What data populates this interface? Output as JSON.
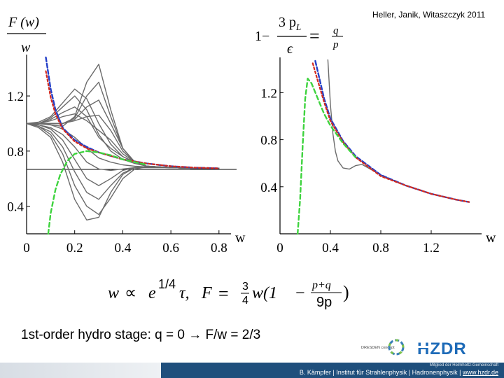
{
  "citation": "Heller, Janik, Witaszczyk 2011",
  "left_panel": {
    "ylabel_num": "F (w)",
    "ylabel_den": "w",
    "xlabel": "w",
    "xticks": [
      "0",
      "0.2",
      "0.4",
      "0.6",
      "0.8"
    ],
    "yticks": [
      "1.2",
      "0.8",
      "0.4"
    ]
  },
  "right_panel": {
    "ylabel_prefix": "1−",
    "ylabel_frac_num": "3 p",
    "ylabel_frac_sub": "L",
    "ylabel_frac_den": "ϵ",
    "ylabel_eq": "=",
    "ylabel_rhs_num": "q",
    "ylabel_rhs_den": "p",
    "xlabel": "w",
    "xticks": [
      "0",
      "0.4",
      "0.8",
      "1.2"
    ],
    "yticks": [
      "1.2",
      "0.8",
      "0.4"
    ]
  },
  "formula": {
    "w": "w",
    "prop": "∝",
    "e": "e",
    "exp": "1/4",
    "tau": "τ,",
    "F": "F",
    "eq": "=",
    "three": "3",
    "four": "4",
    "w2": "w(1",
    "minus": "−",
    "pq": "p+q",
    "ninep": "9p",
    "close": ")"
  },
  "caption": "1st-order hydro stage: q = 0 → F/w = 2/3",
  "logos": {
    "dresden": "DRESDEN concept",
    "hzdr": "HZDR"
  },
  "footer": {
    "member": "Mitglied der Helmholtz-Gemeinschaft",
    "text": "B. Kämpfer | Institut für Strahlenphysik | Hadronenphysik | ",
    "link": "www.hzdr.de"
  },
  "colors": {
    "gray": "#6b6b6b",
    "blue": "#2540c8",
    "red": "#d42a1e",
    "green": "#3ed33e",
    "footer": "#1f4f7c"
  },
  "chart_data": [
    {
      "type": "line",
      "xlabel": "w",
      "ylabel": "F(w)/w",
      "xlim": [
        0,
        0.85
      ],
      "ylim": [
        0.2,
        1.5
      ],
      "xticks": [
        0,
        0.2,
        0.4,
        0.6,
        0.8
      ],
      "yticks": [
        0.4,
        0.8,
        1.2
      ],
      "hline": 0.667,
      "series": [
        {
          "style": "blue-dashed",
          "x": [
            0.08,
            0.1,
            0.12,
            0.15,
            0.2,
            0.25,
            0.3,
            0.4,
            0.5,
            0.6,
            0.7,
            0.8
          ],
          "y": [
            1.48,
            1.25,
            1.1,
            0.97,
            0.88,
            0.83,
            0.79,
            0.74,
            0.71,
            0.69,
            0.68,
            0.675
          ]
        },
        {
          "style": "red-dashed",
          "x": [
            0.08,
            0.1,
            0.12,
            0.15,
            0.2,
            0.25,
            0.3,
            0.4,
            0.5,
            0.6,
            0.7,
            0.8
          ],
          "y": [
            1.38,
            1.19,
            1.07,
            0.96,
            0.87,
            0.82,
            0.79,
            0.74,
            0.71,
            0.69,
            0.68,
            0.675
          ]
        },
        {
          "style": "green-dashed",
          "x": [
            0.09,
            0.1,
            0.12,
            0.14,
            0.17,
            0.2,
            0.25,
            0.3,
            0.35,
            0.4,
            0.45,
            0.5
          ],
          "y": [
            0.2,
            0.35,
            0.52,
            0.63,
            0.73,
            0.78,
            0.8,
            0.79,
            0.77,
            0.74,
            0.72,
            0.7
          ]
        },
        {
          "style": "gray",
          "x": [
            0,
            0.05,
            0.1,
            0.15,
            0.2,
            0.25,
            0.3,
            0.35,
            0.4,
            0.45,
            0.5,
            0.6,
            0.7,
            0.8
          ],
          "y": [
            1.0,
            1.0,
            0.99,
            0.98,
            1.05,
            1.3,
            1.43,
            1.1,
            0.82,
            0.72,
            0.69,
            0.68,
            0.675,
            0.675
          ]
        },
        {
          "style": "gray",
          "x": [
            0,
            0.05,
            0.1,
            0.15,
            0.2,
            0.25,
            0.3,
            0.35,
            0.4,
            0.45,
            0.5,
            0.6,
            0.7,
            0.8
          ],
          "y": [
            1.0,
            1.0,
            1.0,
            1.0,
            1.04,
            1.2,
            1.3,
            1.05,
            0.82,
            0.72,
            0.69,
            0.68,
            0.675,
            0.675
          ]
        },
        {
          "style": "gray",
          "x": [
            0,
            0.05,
            0.1,
            0.15,
            0.2,
            0.25,
            0.3,
            0.35,
            0.4,
            0.45,
            0.5,
            0.6,
            0.7,
            0.8
          ],
          "y": [
            1.0,
            1.0,
            1.0,
            1.0,
            1.03,
            1.12,
            1.17,
            1.0,
            0.82,
            0.72,
            0.69,
            0.68,
            0.675,
            0.675
          ]
        },
        {
          "style": "gray",
          "x": [
            0,
            0.05,
            0.1,
            0.15,
            0.2,
            0.25,
            0.3,
            0.35,
            0.4,
            0.45,
            0.5,
            0.6,
            0.7,
            0.8
          ],
          "y": [
            1.0,
            1.0,
            1.0,
            1.0,
            1.02,
            1.05,
            1.06,
            0.95,
            0.8,
            0.72,
            0.69,
            0.68,
            0.675,
            0.675
          ]
        },
        {
          "style": "gray",
          "x": [
            0,
            0.05,
            0.1,
            0.15,
            0.2,
            0.25,
            0.3,
            0.35,
            0.4,
            0.45,
            0.5,
            0.6,
            0.7,
            0.8
          ],
          "y": [
            1.0,
            1.0,
            1.02,
            1.05,
            1.07,
            1.02,
            0.95,
            0.88,
            0.78,
            0.72,
            0.69,
            0.68,
            0.675,
            0.675
          ]
        },
        {
          "style": "gray",
          "x": [
            0,
            0.05,
            0.1,
            0.15,
            0.2,
            0.25,
            0.3,
            0.35,
            0.4,
            0.45,
            0.5,
            0.6,
            0.7,
            0.8
          ],
          "y": [
            1.0,
            1.0,
            1.03,
            1.08,
            1.12,
            1.05,
            0.9,
            0.82,
            0.76,
            0.72,
            0.69,
            0.68,
            0.675,
            0.675
          ]
        },
        {
          "style": "gray",
          "x": [
            0,
            0.05,
            0.1,
            0.15,
            0.2,
            0.25,
            0.3,
            0.35,
            0.4,
            0.45,
            0.5,
            0.6,
            0.7,
            0.8
          ],
          "y": [
            1.0,
            1.0,
            1.04,
            1.12,
            1.2,
            1.1,
            0.92,
            0.8,
            0.74,
            0.71,
            0.69,
            0.68,
            0.675,
            0.675
          ]
        },
        {
          "style": "gray",
          "x": [
            0,
            0.05,
            0.1,
            0.15,
            0.2,
            0.25,
            0.3,
            0.35,
            0.4,
            0.45,
            0.5,
            0.6,
            0.7,
            0.8
          ],
          "y": [
            1.0,
            1.0,
            0.99,
            0.96,
            0.9,
            0.82,
            0.75,
            0.72,
            0.7,
            0.69,
            0.685,
            0.68,
            0.675,
            0.675
          ]
        },
        {
          "style": "gray",
          "x": [
            0,
            0.05,
            0.1,
            0.15,
            0.2,
            0.25,
            0.3,
            0.35,
            0.4,
            0.45,
            0.5,
            0.6,
            0.7,
            0.8
          ],
          "y": [
            1.0,
            0.99,
            0.97,
            0.92,
            0.83,
            0.72,
            0.67,
            0.66,
            0.67,
            0.68,
            0.68,
            0.68,
            0.675,
            0.675
          ]
        },
        {
          "style": "gray",
          "x": [
            0,
            0.05,
            0.1,
            0.15,
            0.2,
            0.25,
            0.3,
            0.35,
            0.4,
            0.45,
            0.5,
            0.6,
            0.7,
            0.8
          ],
          "y": [
            1.0,
            0.99,
            0.96,
            0.88,
            0.74,
            0.6,
            0.55,
            0.6,
            0.66,
            0.68,
            0.685,
            0.68,
            0.675,
            0.675
          ]
        },
        {
          "style": "gray",
          "x": [
            0,
            0.05,
            0.1,
            0.15,
            0.2,
            0.25,
            0.3,
            0.35,
            0.4,
            0.45,
            0.5,
            0.6,
            0.7,
            0.8
          ],
          "y": [
            1.0,
            0.98,
            0.94,
            0.83,
            0.65,
            0.5,
            0.45,
            0.55,
            0.64,
            0.68,
            0.685,
            0.68,
            0.675,
            0.675
          ]
        },
        {
          "style": "gray",
          "x": [
            0,
            0.05,
            0.1,
            0.15,
            0.2,
            0.25,
            0.3,
            0.35,
            0.4,
            0.45,
            0.5,
            0.6,
            0.7,
            0.8
          ],
          "y": [
            1.0,
            0.98,
            0.92,
            0.78,
            0.55,
            0.4,
            0.34,
            0.46,
            0.6,
            0.67,
            0.685,
            0.68,
            0.675,
            0.675
          ]
        },
        {
          "style": "gray",
          "x": [
            0,
            0.05,
            0.1,
            0.15,
            0.2,
            0.25,
            0.3,
            0.35,
            0.4,
            0.45,
            0.5,
            0.6,
            0.7,
            0.8
          ],
          "y": [
            1.0,
            0.97,
            0.9,
            0.72,
            0.45,
            0.3,
            0.32,
            0.5,
            0.63,
            0.68,
            0.685,
            0.68,
            0.675,
            0.675
          ]
        },
        {
          "style": "gray",
          "x": [
            0,
            0.05,
            0.1,
            0.15,
            0.2,
            0.25,
            0.3,
            0.35,
            0.4,
            0.45,
            0.5,
            0.6,
            0.7,
            0.8
          ],
          "y": [
            1.0,
            1.01,
            1.05,
            1.15,
            1.25,
            1.18,
            1.0,
            0.85,
            0.76,
            0.72,
            0.69,
            0.68,
            0.675,
            0.675
          ]
        }
      ]
    },
    {
      "type": "line",
      "xlabel": "w",
      "ylabel": "1 − 3pL/ϵ = q/p",
      "xlim": [
        0,
        1.6
      ],
      "ylim": [
        0.0,
        1.5
      ],
      "xticks": [
        0,
        0.4,
        0.8,
        1.2
      ],
      "yticks": [
        0.4,
        0.8,
        1.2
      ],
      "series": [
        {
          "style": "blue-dashed",
          "x": [
            0.28,
            0.3,
            0.35,
            0.4,
            0.5,
            0.6,
            0.8,
            1.0,
            1.2,
            1.4,
            1.5
          ],
          "y": [
            1.47,
            1.38,
            1.15,
            0.98,
            0.79,
            0.66,
            0.5,
            0.41,
            0.34,
            0.29,
            0.27
          ]
        },
        {
          "style": "red-dashed",
          "x": [
            0.26,
            0.3,
            0.35,
            0.4,
            0.5,
            0.6,
            0.8,
            1.0,
            1.2,
            1.4,
            1.5
          ],
          "y": [
            1.45,
            1.3,
            1.12,
            0.96,
            0.78,
            0.65,
            0.49,
            0.41,
            0.34,
            0.29,
            0.27
          ]
        },
        {
          "style": "green-dashed",
          "x": [
            0.14,
            0.16,
            0.18,
            0.2,
            0.22,
            0.25,
            0.3,
            0.35,
            0.4,
            0.5,
            0.6
          ],
          "y": [
            0.0,
            0.3,
            0.75,
            1.15,
            1.32,
            1.28,
            1.15,
            1.02,
            0.92,
            0.77,
            0.65
          ]
        },
        {
          "style": "gray",
          "x": [
            0.38,
            0.4,
            0.42,
            0.44,
            0.46,
            0.5,
            0.55,
            0.6,
            0.65,
            0.7,
            0.8,
            1.0,
            1.2,
            1.4,
            1.5
          ],
          "y": [
            1.48,
            1.1,
            0.85,
            0.7,
            0.62,
            0.56,
            0.55,
            0.58,
            0.59,
            0.56,
            0.5,
            0.41,
            0.34,
            0.29,
            0.27
          ]
        }
      ]
    }
  ]
}
